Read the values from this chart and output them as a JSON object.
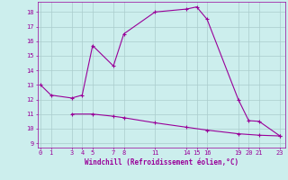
{
  "xlabel": "Windchill (Refroidissement éolien,°C)",
  "x_upper": [
    0,
    1,
    3,
    4,
    5,
    7,
    8,
    11,
    14,
    15,
    16,
    19,
    20,
    21,
    23
  ],
  "y_upper": [
    13.0,
    12.3,
    12.1,
    12.3,
    15.7,
    14.3,
    16.5,
    18.0,
    18.2,
    18.35,
    17.5,
    12.0,
    10.55,
    10.5,
    9.5
  ],
  "x_lower": [
    3,
    5,
    7,
    8,
    11,
    14,
    16,
    19,
    21,
    23
  ],
  "y_lower": [
    11.0,
    11.0,
    10.85,
    10.75,
    10.4,
    10.1,
    9.9,
    9.65,
    9.55,
    9.5
  ],
  "line_color": "#990099",
  "bg_color": "#cceeed",
  "grid_color": "#aacccc",
  "xticks": [
    0,
    1,
    3,
    4,
    5,
    7,
    8,
    11,
    14,
    15,
    16,
    19,
    20,
    21,
    23
  ],
  "yticks": [
    9,
    10,
    11,
    12,
    13,
    14,
    15,
    16,
    17,
    18
  ],
  "ylim": [
    8.7,
    18.7
  ],
  "xlim": [
    -0.3,
    23.5
  ]
}
